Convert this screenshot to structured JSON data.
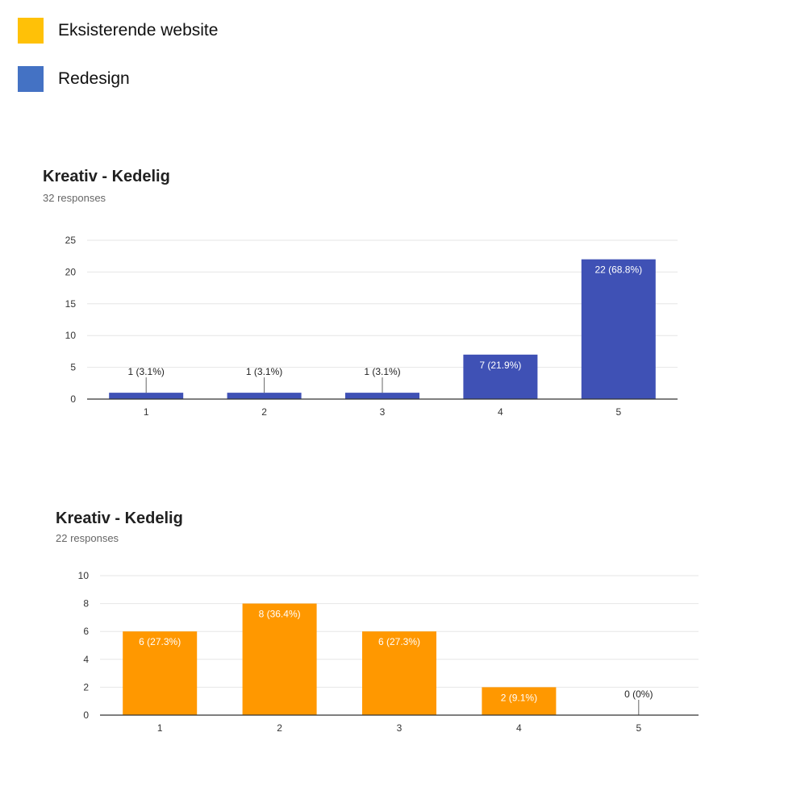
{
  "legend": {
    "items": [
      {
        "label": "Eksisterende website",
        "color": "#FFC107"
      },
      {
        "label": "Redesign",
        "color": "#4472C4"
      }
    ]
  },
  "chart_data": [
    {
      "type": "bar",
      "title": "Kreativ - Kedelig",
      "subtitle": "32 responses",
      "categories": [
        "1",
        "2",
        "3",
        "4",
        "5"
      ],
      "values": [
        1,
        1,
        1,
        7,
        22
      ],
      "data_labels": [
        "1 (3.1%)",
        "1 (3.1%)",
        "1 (3.1%)",
        "7 (21.9%)",
        "22 (68.8%)"
      ],
      "yticks": [
        "0",
        "5",
        "10",
        "15",
        "20",
        "25"
      ],
      "ylim": [
        0,
        25
      ],
      "bar_color": "#3F51B5",
      "grid": true
    },
    {
      "type": "bar",
      "title": "Kreativ - Kedelig",
      "subtitle": "22 responses",
      "categories": [
        "1",
        "2",
        "3",
        "4",
        "5"
      ],
      "values": [
        6,
        8,
        6,
        2,
        0
      ],
      "data_labels": [
        "6 (27.3%)",
        "8 (36.4%)",
        "6 (27.3%)",
        "2 (9.1%)",
        "0 (0%)"
      ],
      "yticks": [
        "0",
        "2",
        "4",
        "6",
        "8",
        "10"
      ],
      "ylim": [
        0,
        10
      ],
      "bar_color": "#FF9800",
      "grid": true
    }
  ]
}
